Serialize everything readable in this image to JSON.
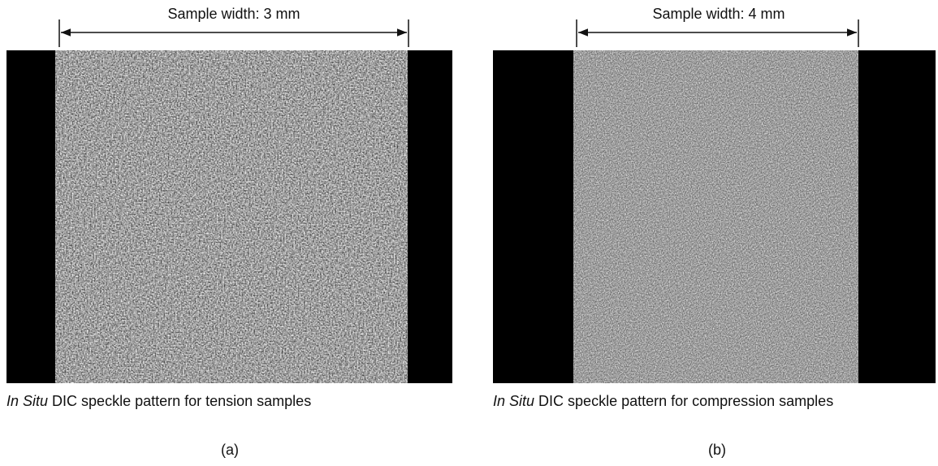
{
  "panels": [
    {
      "width_label": "Sample width: 3 mm",
      "caption_italic": "In Situ",
      "caption": "DIC speckle pattern for tension samples",
      "label": "(a)"
    },
    {
      "width_label": "Sample width: 4 mm",
      "caption_italic": "In Situ",
      "caption": "DIC speckle pattern for compression samples",
      "label": "(b)"
    }
  ]
}
